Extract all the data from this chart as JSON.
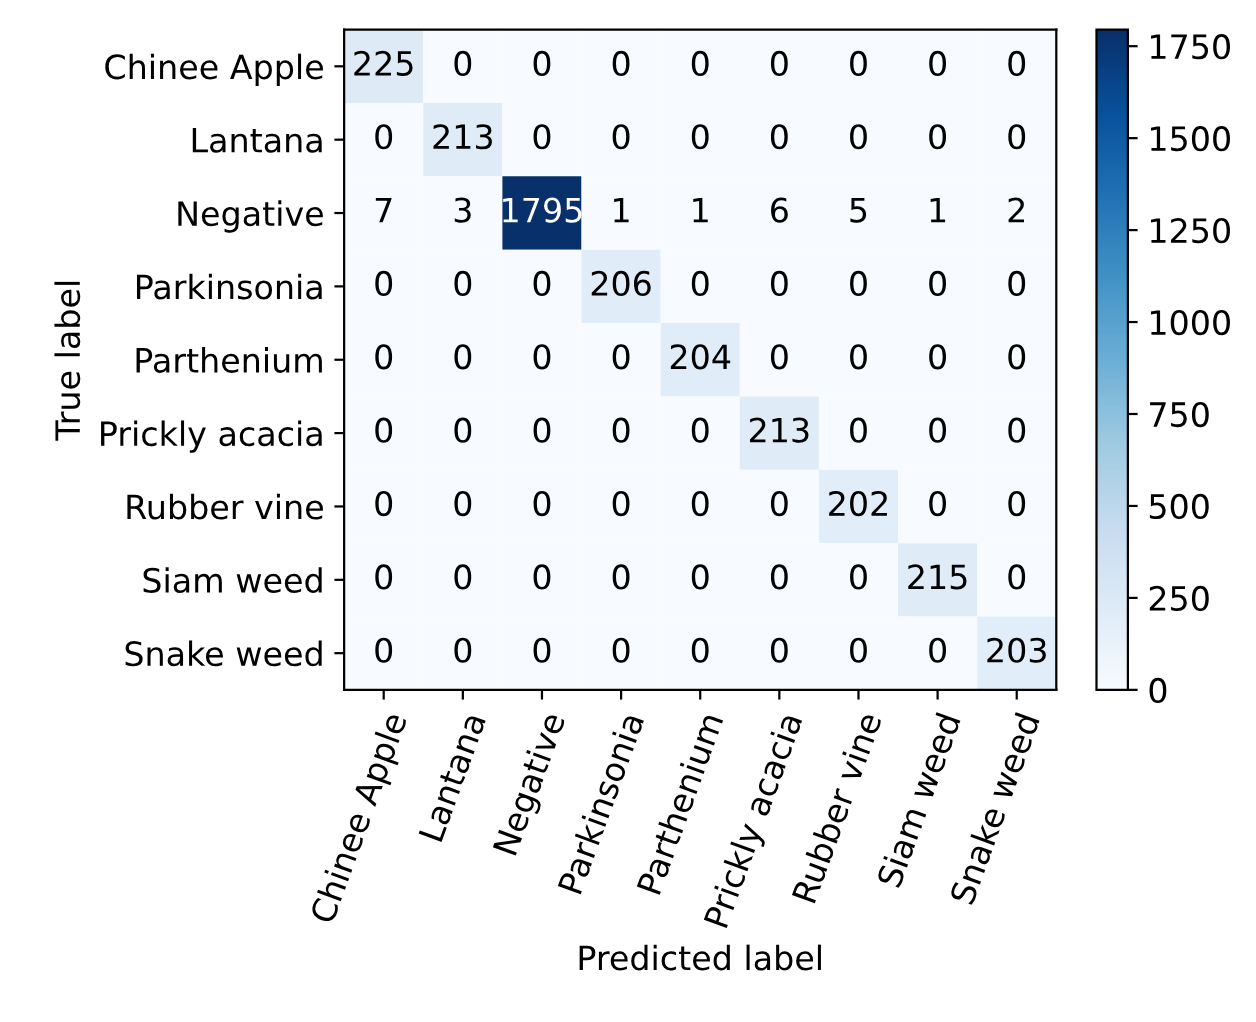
{
  "chart_data": {
    "type": "heatmap",
    "xlabel": "Predicted label",
    "ylabel": "True label",
    "categories": [
      "Chinee Apple",
      "Lantana",
      "Negative",
      "Parkinsonia",
      "Parthenium",
      "Prickly acacia",
      "Rubber vine",
      "Siam weed",
      "Snake weed"
    ],
    "y_categories": [
      "Chinee Apple",
      "Lantana",
      "Negative",
      "Parkinsonia",
      "Parthenium",
      "Prickly acacia",
      "Rubber vine",
      "Siam weed",
      "Snake weed"
    ],
    "cells": [
      [
        225,
        0,
        0,
        0,
        0,
        0,
        0,
        0,
        0
      ],
      [
        0,
        213,
        0,
        0,
        0,
        0,
        0,
        0,
        0
      ],
      [
        7,
        3,
        1795,
        1,
        1,
        6,
        5,
        1,
        2
      ],
      [
        0,
        0,
        0,
        206,
        0,
        0,
        0,
        0,
        0
      ],
      [
        0,
        0,
        0,
        0,
        204,
        0,
        0,
        0,
        0
      ],
      [
        0,
        0,
        0,
        0,
        0,
        213,
        0,
        0,
        0
      ],
      [
        0,
        0,
        0,
        0,
        0,
        0,
        202,
        0,
        0
      ],
      [
        0,
        0,
        0,
        0,
        0,
        0,
        0,
        215,
        0
      ],
      [
        0,
        0,
        0,
        0,
        0,
        0,
        0,
        0,
        203
      ]
    ],
    "clim": [
      0,
      1795
    ],
    "cticks": [
      0,
      250,
      500,
      750,
      1000,
      1250,
      1500,
      1750
    ],
    "data_labels": true
  }
}
